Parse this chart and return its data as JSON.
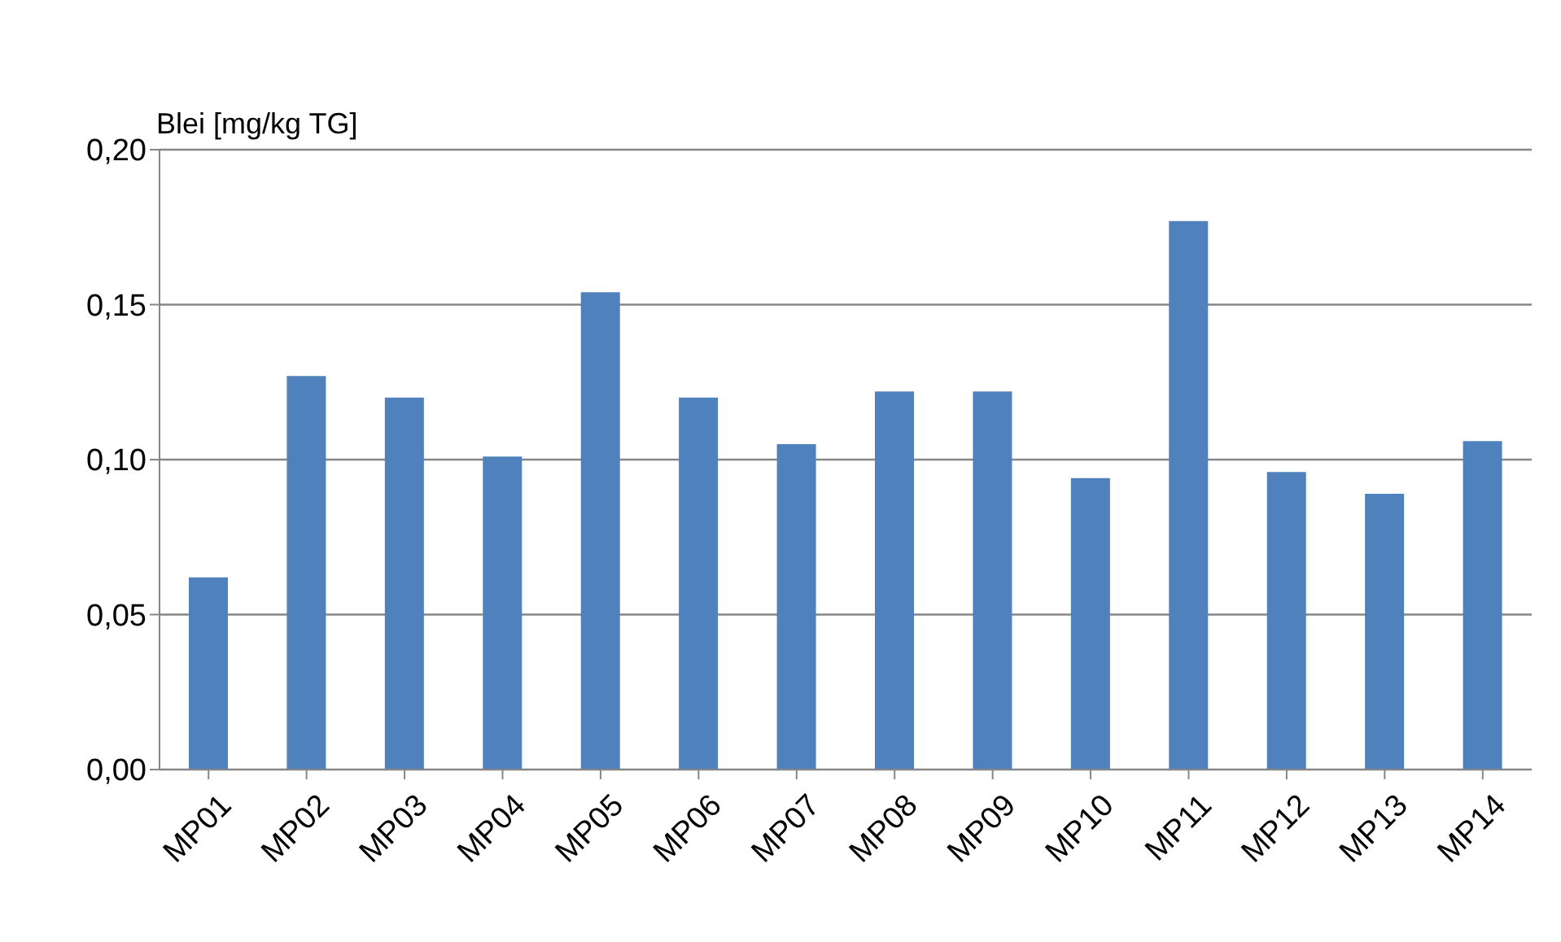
{
  "chart_data": {
    "type": "bar",
    "ylabel": "Blei [mg/kg TG]",
    "categories": [
      "MP01",
      "MP02",
      "MP03",
      "MP04",
      "MP05",
      "MP06",
      "MP07",
      "MP08",
      "MP09",
      "MP10",
      "MP11",
      "MP12",
      "MP13",
      "MP14"
    ],
    "values": [
      0.062,
      0.127,
      0.12,
      0.101,
      0.154,
      0.12,
      0.105,
      0.122,
      0.122,
      0.094,
      0.177,
      0.096,
      0.089,
      0.106
    ],
    "color": "#4f81bd",
    "ylim": [
      0,
      0.2
    ],
    "yticks": [
      {
        "value": 0,
        "label": "0,00"
      },
      {
        "value": 0.05,
        "label": "0,05"
      },
      {
        "value": 0.1,
        "label": "0,10"
      },
      {
        "value": 0.15,
        "label": "0,15"
      },
      {
        "value": 0.2,
        "label": "0,20"
      }
    ],
    "grid": "y"
  }
}
